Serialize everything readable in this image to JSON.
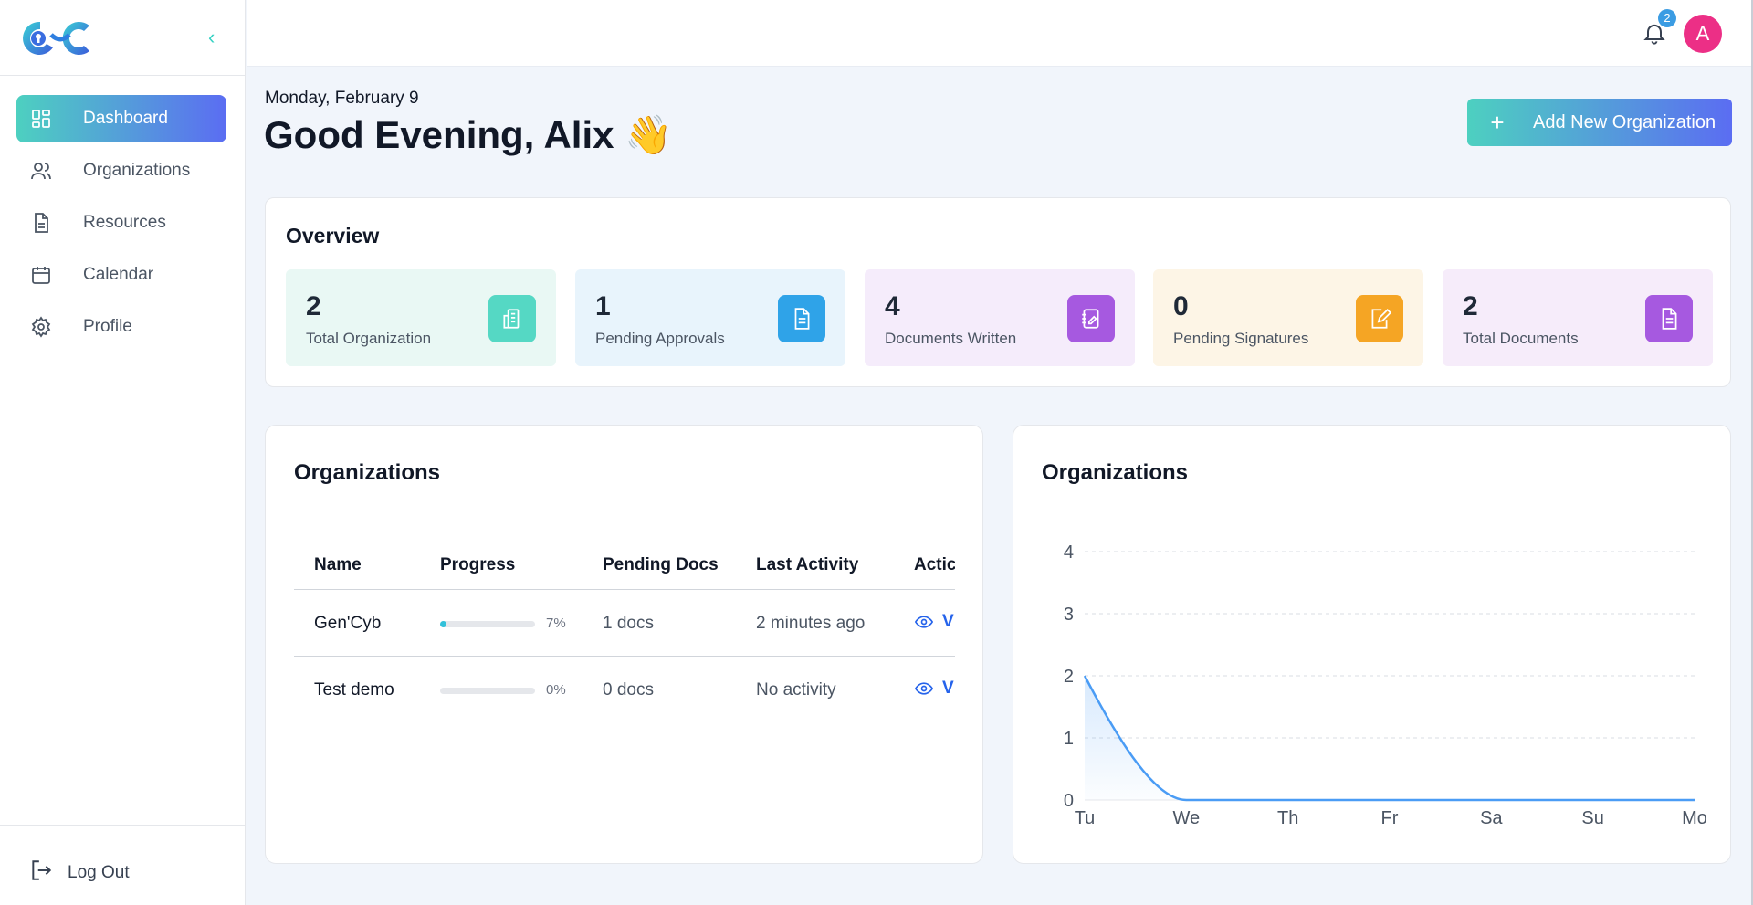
{
  "sidebar": {
    "collapse_icon": "chevron-left-icon",
    "items": [
      {
        "label": "Dashboard",
        "icon": "dashboard-icon",
        "active": true
      },
      {
        "label": "Organizations",
        "icon": "users-icon"
      },
      {
        "label": "Resources",
        "icon": "document-icon"
      },
      {
        "label": "Calendar",
        "icon": "calendar-icon"
      },
      {
        "label": "Profile",
        "icon": "gear-icon"
      }
    ],
    "logout_label": "Log Out"
  },
  "topbar": {
    "notification_count": "2",
    "avatar_initial": "A"
  },
  "header": {
    "date": "Monday, February 9",
    "greeting": "Good Evening, Alix 👋",
    "add_button_label": "Add New Organization"
  },
  "overview": {
    "title": "Overview",
    "stats": [
      {
        "value": "2",
        "label": "Total Organization",
        "bg": "#e9f8f4",
        "icon_bg": "#55d8c4",
        "icon": "building-icon"
      },
      {
        "value": "1",
        "label": "Pending Approvals",
        "bg": "#e8f4fc",
        "icon_bg": "#2fa3e8",
        "icon": "document-icon"
      },
      {
        "value": "4",
        "label": "Documents Written",
        "bg": "#f5ecfb",
        "icon_bg": "#a659e0",
        "icon": "notebook-icon"
      },
      {
        "value": "0",
        "label": "Pending Signatures",
        "bg": "#fdf5e6",
        "icon_bg": "#f5a524",
        "icon": "edit-icon"
      },
      {
        "value": "2",
        "label": "Total Documents",
        "bg": "#f6ecfa",
        "icon_bg": "#a659e0",
        "icon": "document-icon"
      }
    ]
  },
  "org_table": {
    "title": "Organizations",
    "columns": [
      "Name",
      "Progress",
      "Pending Docs",
      "Last Activity",
      "Actic"
    ],
    "rows": [
      {
        "name": "Gen'Cyb",
        "progress": 7,
        "progress_label": "7%",
        "pending": "1 docs",
        "activity": "2 minutes ago",
        "action": "V"
      },
      {
        "name": "Test demo",
        "progress": 0,
        "progress_label": "0%",
        "pending": "0 docs",
        "activity": "No activity",
        "action": "V"
      }
    ]
  },
  "chart_card": {
    "title": "Organizations"
  },
  "chart_data": {
    "type": "area",
    "title": "Organizations",
    "categories": [
      "Tu",
      "We",
      "Th",
      "Fr",
      "Sa",
      "Su",
      "Mo"
    ],
    "series": [
      {
        "values": [
          2,
          0,
          0,
          0,
          0,
          0,
          0
        ]
      }
    ],
    "ylim": [
      0,
      4
    ],
    "yticks": [
      "0",
      "1",
      "2",
      "3",
      "4"
    ],
    "grid": true,
    "color": "#4a9cf5"
  }
}
